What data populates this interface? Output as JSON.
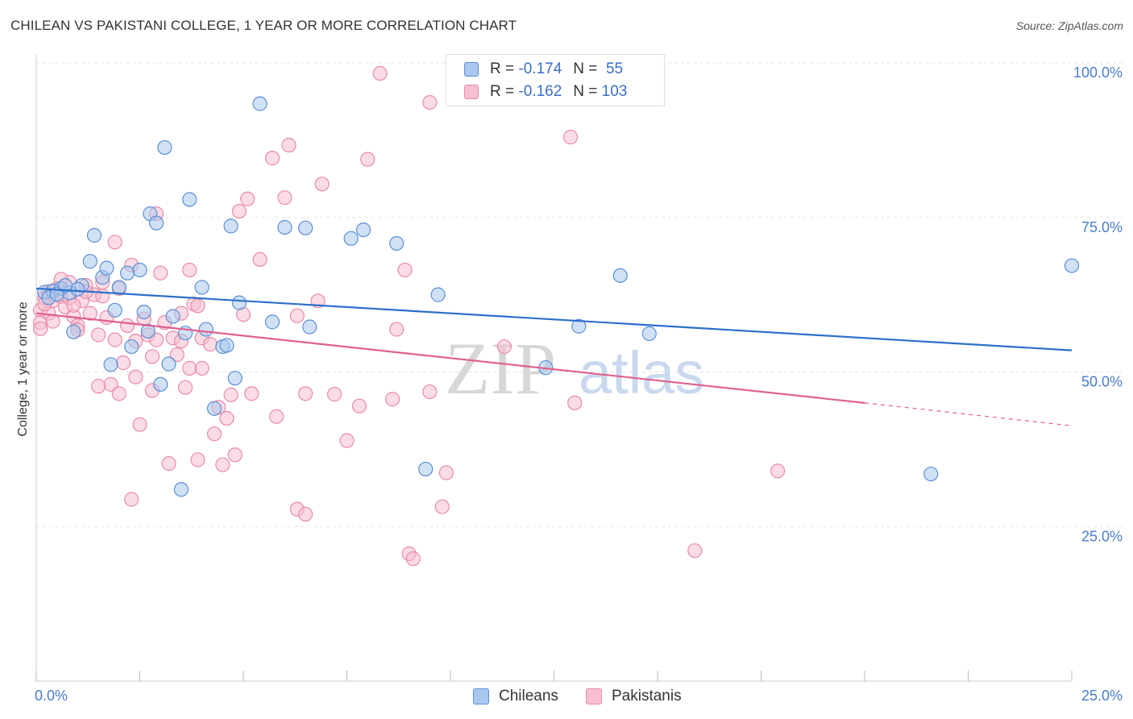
{
  "title": "CHILEAN VS PAKISTANI COLLEGE, 1 YEAR OR MORE CORRELATION CHART",
  "source": "Source: ZipAtlas.com",
  "watermark": {
    "zip": "ZIP",
    "atlas": "atlas"
  },
  "legend_top": {
    "chileans": {
      "r_label": "R = ",
      "r_value": "-0.174",
      "n_label": "N = ",
      "n_value": "55"
    },
    "pakistanis": {
      "r_label": "R = ",
      "r_value": "-0.162",
      "n_label": "N = ",
      "n_value": "103"
    }
  },
  "colors": {
    "chileans_fill": "#aac8ef",
    "chileans_stroke": "#5b8fd6",
    "chileans_line": "#2c6fcb",
    "pakistanis_fill": "#f7bfd0",
    "pakistanis_stroke": "#e88aa8",
    "pakistanis_line": "#e0608d",
    "grid": "#e3e3e3",
    "tick_text": "#4a7cc9"
  },
  "chart_data": {
    "type": "scatter",
    "title": "CHILEAN VS PAKISTANI COLLEGE, 1 YEAR OR MORE CORRELATION CHART",
    "xlabel": "",
    "ylabel": "College, 1 year or more",
    "xlim": [
      0,
      25
    ],
    "ylim": [
      0,
      100
    ],
    "x_tick_labels": [
      "0.0%",
      "25.0%"
    ],
    "y_ticks": [
      25,
      50,
      75,
      100
    ],
    "y_tick_labels": [
      "25.0%",
      "50.0%",
      "75.0%",
      "100.0%"
    ],
    "series": [
      {
        "name": "Chileans",
        "R": -0.174,
        "N": 55,
        "trend": {
          "x0": 0,
          "y0": 63.5,
          "x1": 25,
          "y1": 53.5
        },
        "points": [
          [
            0.2,
            62.9
          ],
          [
            0.4,
            63.1
          ],
          [
            0.6,
            63.5
          ],
          [
            0.8,
            62.8
          ],
          [
            0.9,
            56.5
          ],
          [
            1.1,
            64.0
          ],
          [
            1.3,
            67.9
          ],
          [
            1.4,
            72.1
          ],
          [
            1.6,
            65.3
          ],
          [
            1.7,
            66.8
          ],
          [
            1.8,
            51.2
          ],
          [
            1.9,
            60.0
          ],
          [
            2.0,
            63.7
          ],
          [
            2.2,
            66.0
          ],
          [
            2.3,
            54.1
          ],
          [
            2.5,
            66.5
          ],
          [
            2.6,
            59.7
          ],
          [
            2.7,
            56.6
          ],
          [
            2.75,
            75.6
          ],
          [
            2.9,
            74.1
          ],
          [
            3.0,
            48.0
          ],
          [
            3.1,
            86.3
          ],
          [
            3.2,
            51.3
          ],
          [
            3.3,
            59.0
          ],
          [
            3.5,
            31.0
          ],
          [
            3.6,
            56.3
          ],
          [
            3.7,
            77.9
          ],
          [
            4.0,
            63.7
          ],
          [
            4.1,
            56.9
          ],
          [
            4.3,
            44.1
          ],
          [
            4.5,
            54.1
          ],
          [
            4.6,
            54.3
          ],
          [
            4.7,
            73.6
          ],
          [
            4.8,
            49.0
          ],
          [
            4.9,
            61.2
          ],
          [
            5.4,
            93.4
          ],
          [
            5.7,
            58.1
          ],
          [
            6.0,
            73.4
          ],
          [
            6.5,
            73.3
          ],
          [
            6.6,
            57.3
          ],
          [
            7.6,
            71.6
          ],
          [
            7.9,
            73.0
          ],
          [
            8.7,
            70.8
          ],
          [
            9.4,
            34.3
          ],
          [
            9.7,
            62.5
          ],
          [
            12.3,
            50.7
          ],
          [
            13.1,
            57.4
          ],
          [
            14.1,
            65.6
          ],
          [
            14.8,
            56.2
          ],
          [
            25.0,
            67.2
          ],
          [
            21.6,
            33.5
          ],
          [
            0.3,
            62.0
          ],
          [
            0.5,
            62.6
          ],
          [
            1.0,
            63.4
          ],
          [
            0.7,
            64.0
          ]
        ]
      },
      {
        "name": "Pakistanis",
        "R": -0.162,
        "N": 103,
        "trend": {
          "x0": 0,
          "y0": 59.5,
          "x1": 20,
          "y1": 45.0,
          "dash_to_x": 25,
          "dash_to_y": 41.3
        },
        "points": [
          [
            0.1,
            60.0
          ],
          [
            0.1,
            58.0
          ],
          [
            0.1,
            57.0
          ],
          [
            0.2,
            62.0
          ],
          [
            0.3,
            63.0
          ],
          [
            0.4,
            61.5
          ],
          [
            0.5,
            63.5
          ],
          [
            0.6,
            62.2
          ],
          [
            0.7,
            60.5
          ],
          [
            0.8,
            62.0
          ],
          [
            0.9,
            59.0
          ],
          [
            1.0,
            57.5
          ],
          [
            1.1,
            61.5
          ],
          [
            1.2,
            64.0
          ],
          [
            1.3,
            59.5
          ],
          [
            1.4,
            62.5
          ],
          [
            1.5,
            56.0
          ],
          [
            1.6,
            62.3
          ],
          [
            1.6,
            64.5
          ],
          [
            1.7,
            58.8
          ],
          [
            1.8,
            48.0
          ],
          [
            1.9,
            71.0
          ],
          [
            2.0,
            63.5
          ],
          [
            2.1,
            51.5
          ],
          [
            2.2,
            57.5
          ],
          [
            2.3,
            67.3
          ],
          [
            2.4,
            55.0
          ],
          [
            2.4,
            49.2
          ],
          [
            2.5,
            41.5
          ],
          [
            2.6,
            58.6
          ],
          [
            2.7,
            56.0
          ],
          [
            2.8,
            52.5
          ],
          [
            2.8,
            47.0
          ],
          [
            2.9,
            75.6
          ],
          [
            3.0,
            66.0
          ],
          [
            3.1,
            58.0
          ],
          [
            3.2,
            35.2
          ],
          [
            3.3,
            55.5
          ],
          [
            3.4,
            52.8
          ],
          [
            3.5,
            55.0
          ],
          [
            3.6,
            47.5
          ],
          [
            3.7,
            50.6
          ],
          [
            3.7,
            66.5
          ],
          [
            3.8,
            61.0
          ],
          [
            3.9,
            35.8
          ],
          [
            4.0,
            55.5
          ],
          [
            4.2,
            54.5
          ],
          [
            4.3,
            40.0
          ],
          [
            4.4,
            44.3
          ],
          [
            4.5,
            35.0
          ],
          [
            4.6,
            42.5
          ],
          [
            4.7,
            46.3
          ],
          [
            4.9,
            76.0
          ],
          [
            5.0,
            59.3
          ],
          [
            5.1,
            78.0
          ],
          [
            5.2,
            46.5
          ],
          [
            5.4,
            68.2
          ],
          [
            5.7,
            84.6
          ],
          [
            5.8,
            42.8
          ],
          [
            6.0,
            78.2
          ],
          [
            6.1,
            86.7
          ],
          [
            6.3,
            59.1
          ],
          [
            6.5,
            46.5
          ],
          [
            6.9,
            80.4
          ],
          [
            7.2,
            46.4
          ],
          [
            7.5,
            38.9
          ],
          [
            8.0,
            84.4
          ],
          [
            8.3,
            98.3
          ],
          [
            8.6,
            45.6
          ],
          [
            8.7,
            56.9
          ],
          [
            8.9,
            66.5
          ],
          [
            9.5,
            93.6
          ],
          [
            9.5,
            46.8
          ],
          [
            9.8,
            28.2
          ],
          [
            9.9,
            33.7
          ],
          [
            11.3,
            54.1
          ],
          [
            12.9,
            88.0
          ],
          [
            13.0,
            45.0
          ],
          [
            15.9,
            21.1
          ],
          [
            17.9,
            34.0
          ],
          [
            9.0,
            20.6
          ],
          [
            9.1,
            19.8
          ],
          [
            6.3,
            27.8
          ],
          [
            6.5,
            27.0
          ],
          [
            2.3,
            29.4
          ],
          [
            2.9,
            55.2
          ],
          [
            3.9,
            60.7
          ],
          [
            0.8,
            64.5
          ],
          [
            1.2,
            63.0
          ],
          [
            0.3,
            59.5
          ],
          [
            0.4,
            58.2
          ],
          [
            1.0,
            56.8
          ],
          [
            3.5,
            59.5
          ],
          [
            4.0,
            50.6
          ],
          [
            2.0,
            46.5
          ],
          [
            1.5,
            47.7
          ],
          [
            0.9,
            60.8
          ],
          [
            1.9,
            55.2
          ],
          [
            4.8,
            36.6
          ],
          [
            6.8,
            61.5
          ],
          [
            7.8,
            44.5
          ],
          [
            0.6,
            65.0
          ],
          [
            0.2,
            61.0
          ]
        ]
      }
    ],
    "legend": [
      "Chileans",
      "Pakistanis"
    ],
    "legend_placement": "top-center"
  },
  "bottom_legend": [
    {
      "label": "Chileans"
    },
    {
      "label": "Pakistanis"
    }
  ]
}
